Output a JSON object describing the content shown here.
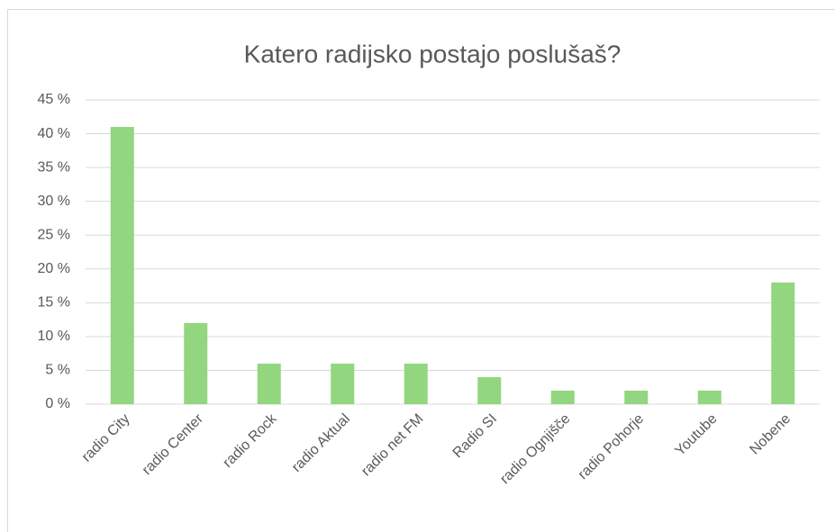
{
  "chart_data": {
    "type": "bar",
    "title": "Katero radijsko postajo poslušaš?",
    "categories": [
      "radio City",
      "radio Center",
      "radio Rock",
      "radio Aktual",
      "radio net FM",
      "Radio SI",
      "radio Ognjišče",
      "radio Pohorje",
      "Youtube",
      "Nobene"
    ],
    "values": [
      41,
      12,
      6,
      6,
      6,
      4,
      2,
      2,
      2,
      18
    ],
    "color": "#92d67f",
    "ylim": [
      0,
      45
    ],
    "yticks": [
      {
        "value": 0,
        "label": "0 %"
      },
      {
        "value": 5,
        "label": "5 %"
      },
      {
        "value": 10,
        "label": "10 %"
      },
      {
        "value": 15,
        "label": "15 %"
      },
      {
        "value": 20,
        "label": "20 %"
      },
      {
        "value": 25,
        "label": "25 %"
      },
      {
        "value": 30,
        "label": "30 %"
      },
      {
        "value": 35,
        "label": "35 %"
      },
      {
        "value": 40,
        "label": "40 %"
      },
      {
        "value": 45,
        "label": "45 %"
      }
    ],
    "grid": true
  }
}
